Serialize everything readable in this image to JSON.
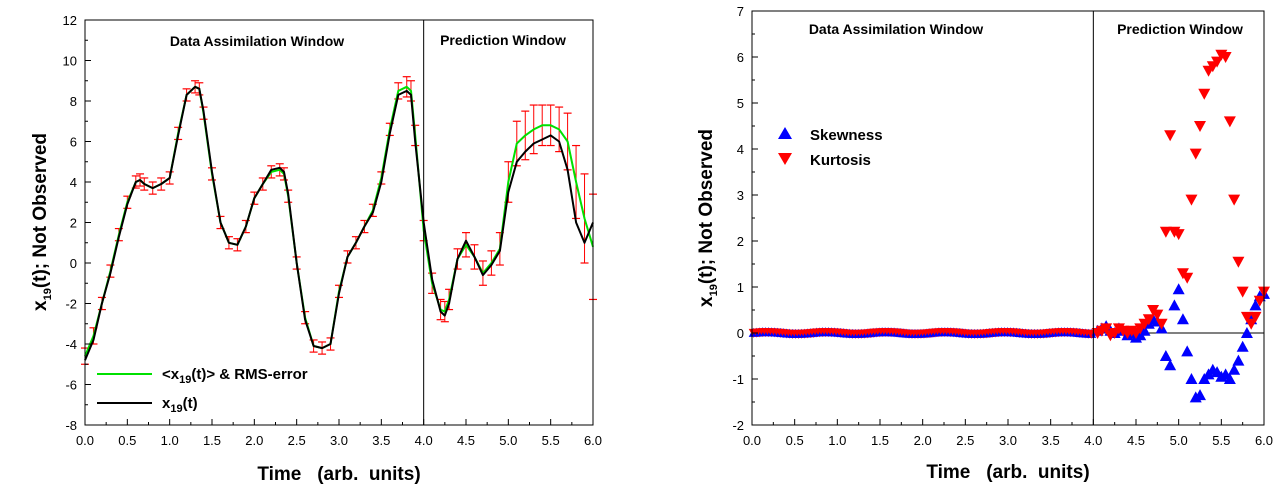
{
  "chart_data": [
    {
      "type": "line",
      "xlabel": "Time   (arb.  units)",
      "ylabel": "x19(t); Not Observed",
      "xlim": [
        0,
        6
      ],
      "ylim": [
        -8,
        12
      ],
      "xticks": [
        "0.0",
        "0.5",
        "1.0",
        "1.5",
        "2.0",
        "2.5",
        "3.0",
        "3.5",
        "4.0",
        "4.5",
        "5.0",
        "5.5",
        "6.0"
      ],
      "yticks": [
        "-8",
        "-6",
        "-4",
        "-2",
        "0",
        "2",
        "4",
        "6",
        "8",
        "10",
        "12"
      ],
      "regions": [
        {
          "label": "Data Assimilation Window",
          "from": 0,
          "to": 4
        },
        {
          "label": "Prediction Window",
          "from": 4,
          "to": 6
        }
      ],
      "divider_x": 4.0,
      "legend": {
        "position": "bottom-left"
      },
      "legend_entries": [
        {
          "main": "<x",
          "sub": "19",
          "rest": "(t)> & RMS-error",
          "color": "#00e000"
        },
        {
          "main": "x",
          "sub": "19",
          "rest": "(t)",
          "color": "#000000"
        }
      ],
      "colors": {
        "mean": "#00e000",
        "truth": "#000000",
        "error": "#ff0000"
      },
      "truth": {
        "name": "x19(t)",
        "x": [
          0.0,
          0.1,
          0.2,
          0.3,
          0.4,
          0.5,
          0.6,
          0.65,
          0.7,
          0.8,
          0.9,
          1.0,
          1.1,
          1.2,
          1.3,
          1.35,
          1.4,
          1.5,
          1.6,
          1.7,
          1.8,
          1.9,
          2.0,
          2.1,
          2.2,
          2.3,
          2.35,
          2.4,
          2.5,
          2.6,
          2.7,
          2.8,
          2.9,
          3.0,
          3.1,
          3.2,
          3.3,
          3.4,
          3.5,
          3.6,
          3.7,
          3.8,
          3.85,
          3.9,
          4.0,
          4.1,
          4.2,
          4.25,
          4.3,
          4.4,
          4.5,
          4.6,
          4.7,
          4.8,
          4.9,
          5.0,
          5.1,
          5.2,
          5.3,
          5.4,
          5.5,
          5.6,
          5.7,
          5.8,
          5.9,
          6.0
        ],
        "y": [
          -4.8,
          -3.8,
          -2.0,
          -0.5,
          1.3,
          2.9,
          4.0,
          4.1,
          3.9,
          3.7,
          3.9,
          4.2,
          6.3,
          8.3,
          8.7,
          8.6,
          7.5,
          4.5,
          2.0,
          1.0,
          0.9,
          1.8,
          3.2,
          3.9,
          4.6,
          4.7,
          4.5,
          3.4,
          0.0,
          -2.8,
          -4.1,
          -4.2,
          -4.0,
          -1.5,
          0.3,
          1.0,
          1.8,
          2.5,
          4.0,
          6.4,
          8.3,
          8.5,
          8.3,
          6.0,
          2.0,
          -0.8,
          -2.4,
          -2.6,
          -2.0,
          0.2,
          1.1,
          0.3,
          -0.6,
          -0.1,
          0.6,
          3.5,
          5.0,
          5.5,
          5.9,
          6.1,
          6.3,
          6.0,
          4.6,
          2.0,
          1.0,
          2.0
        ]
      },
      "mean": {
        "name": "<x19(t)> & RMS-error",
        "x": [
          0.0,
          0.1,
          0.2,
          0.3,
          0.4,
          0.5,
          0.6,
          0.65,
          0.7,
          0.8,
          0.9,
          1.0,
          1.1,
          1.2,
          1.3,
          1.35,
          1.4,
          1.5,
          1.6,
          1.7,
          1.8,
          1.9,
          2.0,
          2.1,
          2.2,
          2.3,
          2.35,
          2.4,
          2.5,
          2.6,
          2.7,
          2.8,
          2.9,
          3.0,
          3.1,
          3.2,
          3.3,
          3.4,
          3.5,
          3.6,
          3.7,
          3.8,
          3.85,
          3.9,
          4.0,
          4.1,
          4.2,
          4.25,
          4.3,
          4.4,
          4.5,
          4.6,
          4.7,
          4.8,
          4.9,
          5.0,
          5.1,
          5.2,
          5.3,
          5.4,
          5.5,
          5.6,
          5.7,
          5.8,
          5.9,
          6.0
        ],
        "y": [
          -4.6,
          -3.6,
          -2.0,
          -0.4,
          1.4,
          3.0,
          4.0,
          4.1,
          3.9,
          3.7,
          3.9,
          4.2,
          6.4,
          8.3,
          8.7,
          8.6,
          7.4,
          4.4,
          2.0,
          1.0,
          0.9,
          1.8,
          3.2,
          3.9,
          4.5,
          4.6,
          4.4,
          3.3,
          0.0,
          -2.7,
          -4.1,
          -4.2,
          -4.0,
          -1.4,
          0.3,
          1.0,
          1.8,
          2.6,
          4.2,
          6.6,
          8.5,
          8.7,
          8.5,
          6.3,
          1.6,
          -1.0,
          -2.3,
          -2.4,
          -1.8,
          0.2,
          0.9,
          0.3,
          -0.5,
          0.0,
          0.7,
          4.0,
          5.9,
          6.3,
          6.6,
          6.8,
          6.8,
          6.6,
          6.0,
          4.0,
          2.2,
          0.8
        ]
      },
      "rms_error": [
        0.4,
        0.4,
        0.3,
        0.3,
        0.3,
        0.3,
        0.3,
        0.3,
        0.3,
        0.3,
        0.3,
        0.3,
        0.3,
        0.3,
        0.3,
        0.3,
        0.3,
        0.3,
        0.3,
        0.3,
        0.3,
        0.3,
        0.3,
        0.3,
        0.3,
        0.3,
        0.3,
        0.3,
        0.3,
        0.3,
        0.3,
        0.3,
        0.3,
        0.3,
        0.3,
        0.3,
        0.3,
        0.3,
        0.3,
        0.3,
        0.4,
        0.5,
        0.5,
        0.5,
        0.5,
        0.5,
        0.5,
        0.5,
        0.5,
        0.5,
        0.6,
        0.6,
        0.6,
        0.6,
        0.8,
        1.0,
        1.1,
        1.2,
        1.2,
        1.0,
        1.0,
        1.1,
        1.4,
        1.8,
        2.2,
        2.6
      ]
    },
    {
      "type": "scatter",
      "xlabel": "Time   (arb.  units)",
      "ylabel": "x19(t); Not Observed",
      "xlim": [
        0,
        6
      ],
      "ylim": [
        -2,
        7
      ],
      "xticks": [
        "0.0",
        "0.5",
        "1.0",
        "1.5",
        "2.0",
        "2.5",
        "3.0",
        "3.5",
        "4.0",
        "4.5",
        "5.0",
        "5.5",
        "6.0"
      ],
      "yticks": [
        "-2",
        "-1",
        "0",
        "1",
        "2",
        "3",
        "4",
        "5",
        "6",
        "7"
      ],
      "regions": [
        {
          "label": "Data Assimilation Window",
          "from": 0,
          "to": 4
        },
        {
          "label": "Prediction Window",
          "from": 4,
          "to": 6
        }
      ],
      "divider_x": 4.0,
      "zero_line": true,
      "legend": {
        "position": "top-left"
      },
      "series": [
        {
          "name": "Skewness",
          "marker": "triangle-up",
          "color": "#0000ff",
          "x": [
            4.05,
            4.1,
            4.15,
            4.2,
            4.25,
            4.3,
            4.35,
            4.4,
            4.45,
            4.5,
            4.55,
            4.6,
            4.65,
            4.7,
            4.75,
            4.8,
            4.85,
            4.9,
            4.95,
            5.0,
            5.05,
            5.1,
            5.15,
            5.2,
            5.25,
            5.3,
            5.35,
            5.4,
            5.45,
            5.5,
            5.55,
            5.6,
            5.65,
            5.7,
            5.75,
            5.8,
            5.85,
            5.9,
            5.95,
            6.0
          ],
          "y": [
            0.05,
            0.1,
            0.15,
            0.05,
            0.0,
            0.1,
            0.05,
            -0.05,
            0.0,
            -0.1,
            -0.05,
            0.05,
            0.2,
            0.3,
            0.25,
            0.1,
            -0.5,
            -0.7,
            0.6,
            0.95,
            0.3,
            -0.4,
            -1.0,
            -1.4,
            -1.35,
            -1.0,
            -0.9,
            -0.8,
            -0.85,
            -0.95,
            -0.9,
            -1.0,
            -0.8,
            -0.6,
            -0.3,
            0.0,
            0.3,
            0.6,
            0.8,
            0.85
          ]
        },
        {
          "name": "Kurtosis",
          "marker": "triangle-down",
          "color": "#ff0000",
          "x": [
            4.05,
            4.1,
            4.15,
            4.2,
            4.25,
            4.3,
            4.35,
            4.4,
            4.45,
            4.5,
            4.55,
            4.6,
            4.65,
            4.7,
            4.75,
            4.8,
            4.85,
            4.9,
            4.95,
            5.0,
            5.05,
            5.1,
            5.15,
            5.2,
            5.25,
            5.3,
            5.35,
            5.4,
            5.45,
            5.5,
            5.55,
            5.6,
            5.65,
            5.7,
            5.75,
            5.8,
            5.85,
            5.9,
            5.95,
            6.0
          ],
          "y": [
            0.0,
            0.05,
            0.1,
            -0.05,
            0.0,
            0.1,
            0.05,
            0.0,
            0.05,
            0.0,
            0.1,
            0.2,
            0.3,
            0.5,
            0.4,
            0.2,
            2.2,
            4.3,
            2.2,
            2.15,
            1.3,
            1.2,
            2.9,
            3.9,
            4.5,
            5.2,
            5.7,
            5.8,
            5.9,
            6.05,
            6.0,
            4.6,
            2.9,
            1.55,
            0.9,
            0.35,
            0.2,
            0.35,
            0.7,
            0.9
          ]
        }
      ]
    }
  ]
}
